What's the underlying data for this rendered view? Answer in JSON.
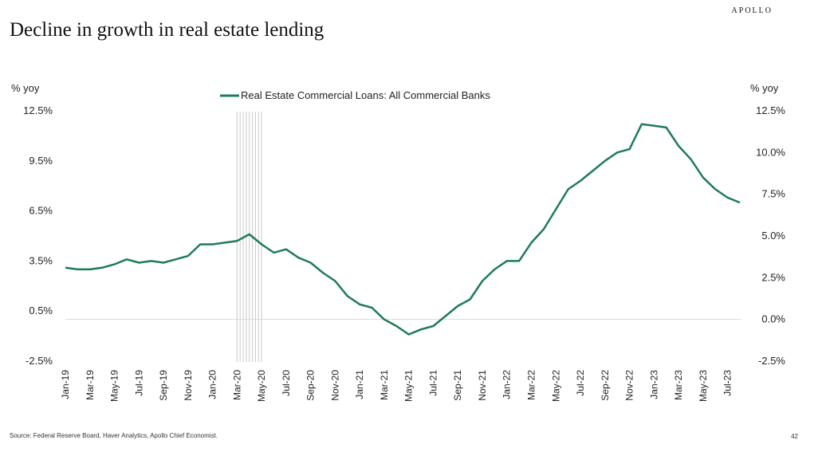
{
  "brand": "APOLLO",
  "title": "Decline in growth in real estate lending",
  "source": "Source: Federal Reserve Board, Haver Analytics, Apollo Chief Economist.",
  "page_number": "42",
  "colors": {
    "line": "#1e7a5f",
    "shading": "#c8c8c8",
    "zero_line": "#d9d9d9"
  },
  "chart_data": {
    "type": "line",
    "title": "",
    "legend_position": "top-center",
    "grid": false,
    "y_left": {
      "label": "% yoy",
      "ticks": [
        "12.5%",
        "9.5%",
        "6.5%",
        "3.5%",
        "0.5%",
        "-2.5%"
      ],
      "ylim": [
        -2.5,
        12.5
      ]
    },
    "y_right": {
      "label": "% yoy",
      "ticks": [
        "12.5%",
        "10.0%",
        "7.5%",
        "5.0%",
        "2.5%",
        "0.0%",
        "-2.5%"
      ],
      "ylim": [
        -2.5,
        12.5
      ]
    },
    "x_ticks": [
      "Jan-19",
      "Mar-19",
      "May-19",
      "Jul-19",
      "Sep-19",
      "Nov-19",
      "Jan-20",
      "Mar-20",
      "May-20",
      "Jul-20",
      "Sep-20",
      "Nov-20",
      "Jan-21",
      "Mar-21",
      "May-21",
      "Jul-21",
      "Sep-21",
      "Nov-21",
      "Jan-22",
      "Mar-22",
      "May-22",
      "Jul-22",
      "Sep-22",
      "Nov-22",
      "Jan-23",
      "Mar-23",
      "May-23",
      "Jul-23"
    ],
    "recession_shading": {
      "start": "2020-03-01",
      "end": "2020-05-01"
    },
    "series": [
      {
        "name": "Real Estate Commercial Loans: All Commercial Banks",
        "x": [
          "2019-01-01",
          "2019-02-01",
          "2019-03-01",
          "2019-04-01",
          "2019-05-01",
          "2019-06-01",
          "2019-07-01",
          "2019-08-01",
          "2019-09-01",
          "2019-10-01",
          "2019-11-01",
          "2019-12-01",
          "2020-01-01",
          "2020-02-01",
          "2020-03-01",
          "2020-04-01",
          "2020-05-01",
          "2020-06-01",
          "2020-07-01",
          "2020-08-01",
          "2020-09-01",
          "2020-10-01",
          "2020-11-01",
          "2020-12-01",
          "2021-01-01",
          "2021-02-01",
          "2021-03-01",
          "2021-04-01",
          "2021-05-01",
          "2021-06-01",
          "2021-07-01",
          "2021-08-01",
          "2021-09-01",
          "2021-10-01",
          "2021-11-01",
          "2021-12-01",
          "2022-01-01",
          "2022-02-01",
          "2022-03-01",
          "2022-04-01",
          "2022-05-01",
          "2022-06-01",
          "2022-07-01",
          "2022-08-01",
          "2022-09-01",
          "2022-10-01",
          "2022-11-01",
          "2022-12-01",
          "2023-01-01",
          "2023-02-01",
          "2023-03-01",
          "2023-04-01",
          "2023-05-01",
          "2023-06-01",
          "2023-07-01",
          "2023-08-01"
        ],
        "values": [
          3.1,
          3.0,
          3.0,
          3.1,
          3.3,
          3.6,
          3.4,
          3.5,
          3.4,
          3.6,
          3.8,
          4.5,
          4.5,
          4.6,
          4.7,
          5.1,
          4.5,
          4.0,
          4.2,
          3.7,
          3.4,
          2.8,
          2.3,
          1.4,
          0.9,
          0.7,
          0.0,
          -0.4,
          -0.9,
          -0.6,
          -0.4,
          0.2,
          0.8,
          1.2,
          2.3,
          3.0,
          3.5,
          3.5,
          4.6,
          5.4,
          6.6,
          7.8,
          8.3,
          8.9,
          9.5,
          10.0,
          10.2,
          11.7,
          11.6,
          11.5,
          10.4,
          9.6,
          8.5,
          7.8,
          7.3,
          7.0
        ]
      }
    ]
  }
}
